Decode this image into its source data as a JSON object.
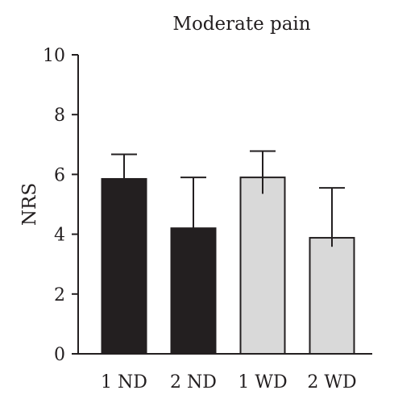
{
  "chart_data": {
    "type": "bar",
    "title": "Moderate pain",
    "xlabel": "",
    "ylabel": "NRS",
    "ylim": [
      0,
      10
    ],
    "yticks": [
      0,
      2,
      4,
      6,
      8,
      10
    ],
    "categories": [
      "1 ND",
      "2 ND",
      "1 WD",
      "2 WD"
    ],
    "values": [
      5.85,
      4.2,
      5.9,
      3.88
    ],
    "errors": [
      0.82,
      1.7,
      0.88,
      1.67
    ],
    "lower_errors": [
      0,
      0,
      0.55,
      0.3
    ],
    "colors": [
      "#231f20",
      "#231f20",
      "#d9d9d9",
      "#d9d9d9"
    ],
    "edge_color": "#231f20",
    "grid": false,
    "legend": "none"
  }
}
